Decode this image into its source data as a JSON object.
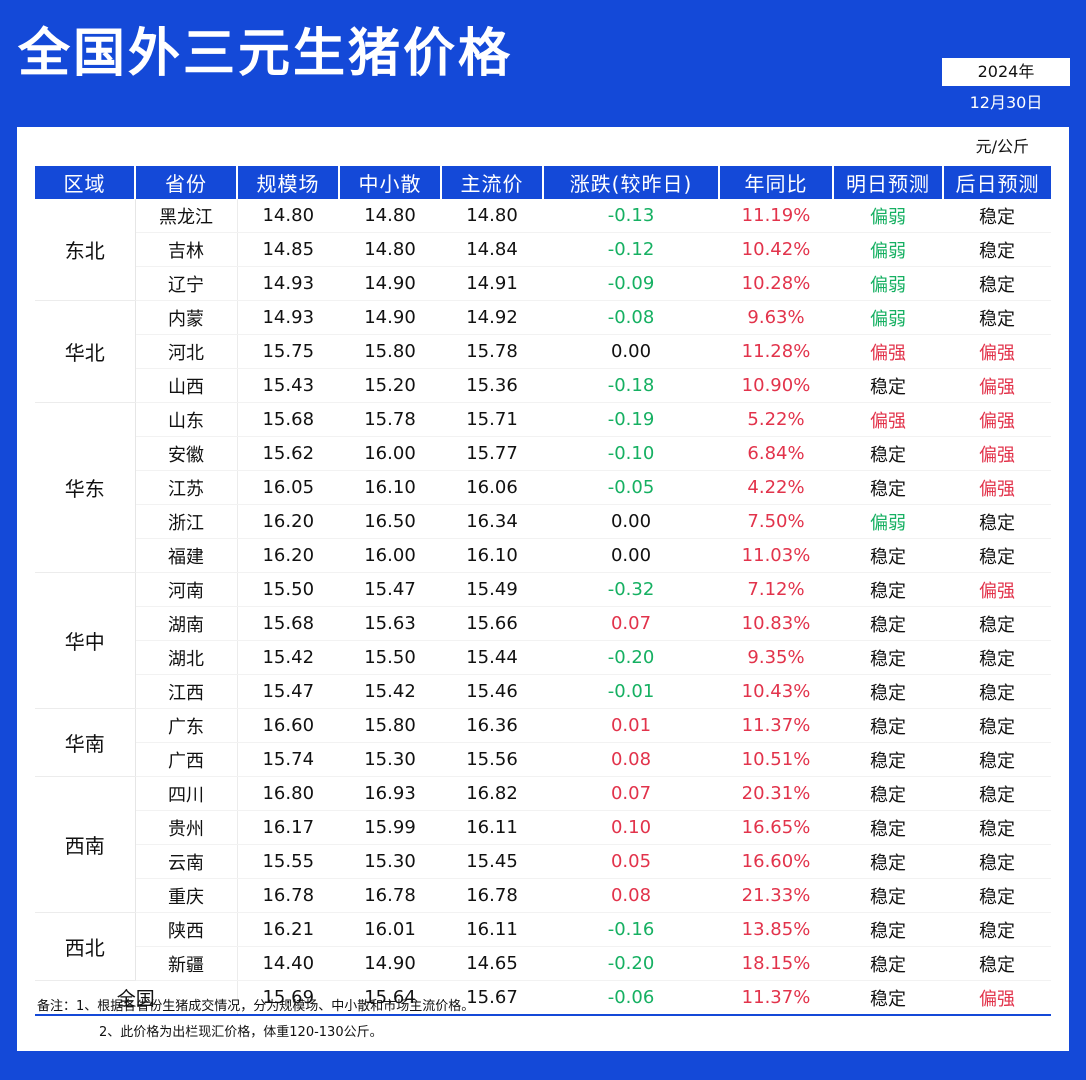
{
  "title": "全国外三元生猪价格",
  "date": {
    "year": "2024年",
    "day": "12月30日"
  },
  "unit": "元/公斤",
  "headers": [
    "区域",
    "省份",
    "规模场",
    "中小散",
    "主流价",
    "涨跌(较昨日)",
    "年同比",
    "明日预测",
    "后日预测"
  ],
  "regions": [
    {
      "name": "东北",
      "rows": [
        {
          "prov": "黑龙江",
          "scale": "14.80",
          "small": "14.80",
          "main": "14.80",
          "change": "-0.13",
          "yoy": "11.19%",
          "tomorrow": "偏弱",
          "after": "稳定"
        },
        {
          "prov": "吉林",
          "scale": "14.85",
          "small": "14.80",
          "main": "14.84",
          "change": "-0.12",
          "yoy": "10.42%",
          "tomorrow": "偏弱",
          "after": "稳定"
        },
        {
          "prov": "辽宁",
          "scale": "14.93",
          "small": "14.90",
          "main": "14.91",
          "change": "-0.09",
          "yoy": "10.28%",
          "tomorrow": "偏弱",
          "after": "稳定"
        }
      ]
    },
    {
      "name": "华北",
      "rows": [
        {
          "prov": "内蒙",
          "scale": "14.93",
          "small": "14.90",
          "main": "14.92",
          "change": "-0.08",
          "yoy": "9.63%",
          "tomorrow": "偏弱",
          "after": "稳定"
        },
        {
          "prov": "河北",
          "scale": "15.75",
          "small": "15.80",
          "main": "15.78",
          "change": "0.00",
          "yoy": "11.28%",
          "tomorrow": "偏强",
          "after": "偏强"
        },
        {
          "prov": "山西",
          "scale": "15.43",
          "small": "15.20",
          "main": "15.36",
          "change": "-0.18",
          "yoy": "10.90%",
          "tomorrow": "稳定",
          "after": "偏强"
        }
      ]
    },
    {
      "name": "华东",
      "rows": [
        {
          "prov": "山东",
          "scale": "15.68",
          "small": "15.78",
          "main": "15.71",
          "change": "-0.19",
          "yoy": "5.22%",
          "tomorrow": "偏强",
          "after": "偏强"
        },
        {
          "prov": "安徽",
          "scale": "15.62",
          "small": "16.00",
          "main": "15.77",
          "change": "-0.10",
          "yoy": "6.84%",
          "tomorrow": "稳定",
          "after": "偏强"
        },
        {
          "prov": "江苏",
          "scale": "16.05",
          "small": "16.10",
          "main": "16.06",
          "change": "-0.05",
          "yoy": "4.22%",
          "tomorrow": "稳定",
          "after": "偏强"
        },
        {
          "prov": "浙江",
          "scale": "16.20",
          "small": "16.50",
          "main": "16.34",
          "change": "0.00",
          "yoy": "7.50%",
          "tomorrow": "偏弱",
          "after": "稳定"
        },
        {
          "prov": "福建",
          "scale": "16.20",
          "small": "16.00",
          "main": "16.10",
          "change": "0.00",
          "yoy": "11.03%",
          "tomorrow": "稳定",
          "after": "稳定"
        }
      ]
    },
    {
      "name": "华中",
      "rows": [
        {
          "prov": "河南",
          "scale": "15.50",
          "small": "15.47",
          "main": "15.49",
          "change": "-0.32",
          "yoy": "7.12%",
          "tomorrow": "稳定",
          "after": "偏强"
        },
        {
          "prov": "湖南",
          "scale": "15.68",
          "small": "15.63",
          "main": "15.66",
          "change": "0.07",
          "yoy": "10.83%",
          "tomorrow": "稳定",
          "after": "稳定"
        },
        {
          "prov": "湖北",
          "scale": "15.42",
          "small": "15.50",
          "main": "15.44",
          "change": "-0.20",
          "yoy": "9.35%",
          "tomorrow": "稳定",
          "after": "稳定"
        },
        {
          "prov": "江西",
          "scale": "15.47",
          "small": "15.42",
          "main": "15.46",
          "change": "-0.01",
          "yoy": "10.43%",
          "tomorrow": "稳定",
          "after": "稳定"
        }
      ]
    },
    {
      "name": "华南",
      "rows": [
        {
          "prov": "广东",
          "scale": "16.60",
          "small": "15.80",
          "main": "16.36",
          "change": "0.01",
          "yoy": "11.37%",
          "tomorrow": "稳定",
          "after": "稳定"
        },
        {
          "prov": "广西",
          "scale": "15.74",
          "small": "15.30",
          "main": "15.56",
          "change": "0.08",
          "yoy": "10.51%",
          "tomorrow": "稳定",
          "after": "稳定"
        }
      ]
    },
    {
      "name": "西南",
      "rows": [
        {
          "prov": "四川",
          "scale": "16.80",
          "small": "16.93",
          "main": "16.82",
          "change": "0.07",
          "yoy": "20.31%",
          "tomorrow": "稳定",
          "after": "稳定"
        },
        {
          "prov": "贵州",
          "scale": "16.17",
          "small": "15.99",
          "main": "16.11",
          "change": "0.10",
          "yoy": "16.65%",
          "tomorrow": "稳定",
          "after": "稳定"
        },
        {
          "prov": "云南",
          "scale": "15.55",
          "small": "15.30",
          "main": "15.45",
          "change": "0.05",
          "yoy": "16.60%",
          "tomorrow": "稳定",
          "after": "稳定"
        },
        {
          "prov": "重庆",
          "scale": "16.78",
          "small": "16.78",
          "main": "16.78",
          "change": "0.08",
          "yoy": "21.33%",
          "tomorrow": "稳定",
          "after": "稳定"
        }
      ]
    },
    {
      "name": "西北",
      "rows": [
        {
          "prov": "陕西",
          "scale": "16.21",
          "small": "16.01",
          "main": "16.11",
          "change": "-0.16",
          "yoy": "13.85%",
          "tomorrow": "稳定",
          "after": "稳定"
        },
        {
          "prov": "新疆",
          "scale": "14.40",
          "small": "14.90",
          "main": "14.65",
          "change": "-0.20",
          "yoy": "18.15%",
          "tomorrow": "稳定",
          "after": "稳定"
        }
      ]
    }
  ],
  "total": {
    "label": "全国",
    "scale": "15.69",
    "small": "15.64",
    "main": "15.67",
    "change": "-0.06",
    "yoy": "11.37%",
    "tomorrow": "稳定",
    "after": "偏强"
  },
  "notes": [
    "备注：1、根据各省份生猪成交情况，分为规模场、中小散和市场主流价格。",
    "2、此价格为出栏现汇价格，体重120-130公斤。"
  ],
  "colors": {
    "brand": "#1449d8",
    "up": "#e2334b",
    "down": "#16b062"
  }
}
